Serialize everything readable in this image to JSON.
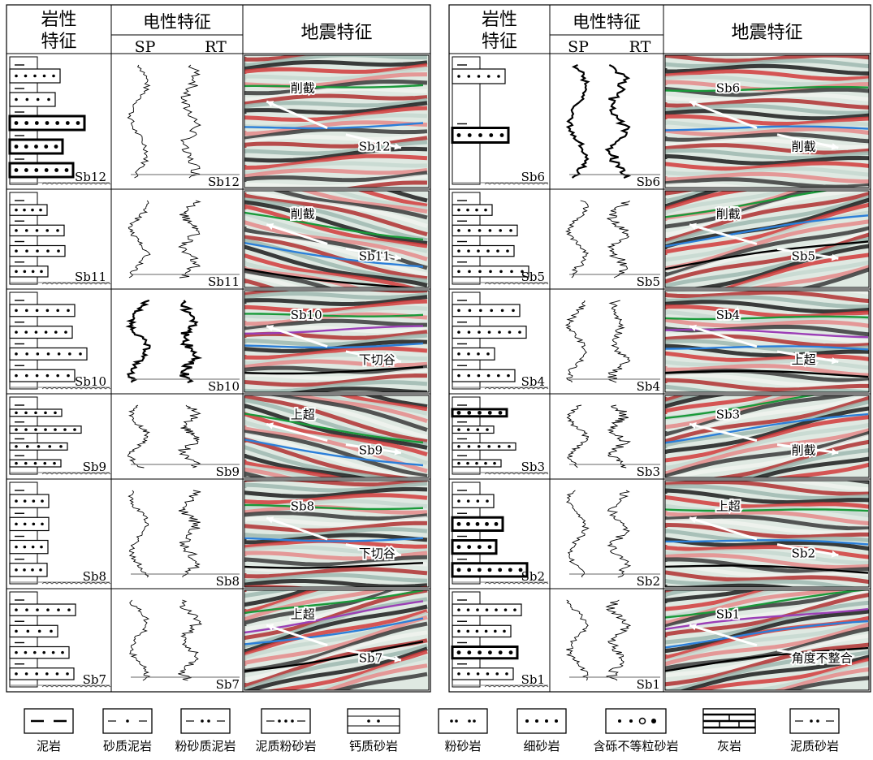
{
  "headers": {
    "lith": [
      "岩性",
      "特征"
    ],
    "elec": "电性特征",
    "sp": "SP",
    "rt": "RT",
    "seis": "地震特征"
  },
  "rows": [
    {
      "lith": "Sb12",
      "curve": "Sb12",
      "seis": [
        {
          "id": "a",
          "text": "削截"
        },
        {
          "id": "b",
          "text": "Sb12"
        }
      ]
    },
    {
      "lith": "Sb11",
      "curve": "Sb11",
      "seis": [
        {
          "id": "a",
          "text": "削截"
        },
        {
          "id": "b",
          "text": "Sb11"
        }
      ]
    },
    {
      "lith": "Sb10",
      "curve": "Sb10",
      "seis": [
        {
          "id": "a",
          "text": "Sb10"
        },
        {
          "id": "b",
          "text": "下切谷"
        }
      ]
    },
    {
      "lith": "Sb9",
      "curve": "Sb9",
      "seis": [
        {
          "id": "a",
          "text": "上超"
        },
        {
          "id": "b",
          "text": "Sb9"
        }
      ]
    },
    {
      "lith": "Sb8",
      "curve": "Sb8",
      "seis": [
        {
          "id": "a",
          "text": "Sb8"
        },
        {
          "id": "b",
          "text": "下切谷"
        }
      ]
    },
    {
      "lith": "Sb7",
      "curve": "Sb7",
      "seis": [
        {
          "id": "a",
          "text": "上超"
        },
        {
          "id": "b",
          "text": "Sb7"
        }
      ]
    },
    {
      "lith": "Sb6",
      "curve": "Sb6",
      "seis": [
        {
          "id": "a",
          "text": "Sb6"
        },
        {
          "id": "b",
          "text": "削截"
        }
      ]
    },
    {
      "lith": "Sb5",
      "curve": "Sb5",
      "seis": [
        {
          "id": "a",
          "text": "削截"
        },
        {
          "id": "b",
          "text": "Sb5"
        }
      ]
    },
    {
      "lith": "Sb4",
      "curve": "Sb4",
      "seis": [
        {
          "id": "a",
          "text": "Sb4"
        },
        {
          "id": "b",
          "text": "上超"
        }
      ]
    },
    {
      "lith": "Sb3",
      "curve": "Sb3",
      "seis": [
        {
          "id": "a",
          "text": "Sb3"
        },
        {
          "id": "b",
          "text": "削截"
        }
      ]
    },
    {
      "lith": "Sb2",
      "curve": "Sb2",
      "seis": [
        {
          "id": "a",
          "text": "上超"
        },
        {
          "id": "b",
          "text": "Sb2"
        }
      ]
    },
    {
      "lith": "Sb1",
      "curve": "Sb1",
      "seis": [
        {
          "id": "a",
          "text": "Sb1"
        },
        {
          "id": "b",
          "text": "角度不整合"
        }
      ]
    }
  ],
  "legend": [
    "泥岩",
    "砂质泥岩",
    "粉砂质泥岩",
    "泥质粉砂岩",
    "钙质砂岩",
    "粉砂岩",
    "细砂岩",
    "含砾不等粒砂岩",
    "灰岩",
    "泥质砂岩"
  ],
  "colors": {
    "green": "#1a9a3a",
    "blue": "#2b7fd9",
    "yellow": "#f1d100",
    "purple": "#9b3fb6",
    "black": "#000000",
    "red": "#d93030",
    "rust": "#d27b2c",
    "line": "#555555"
  }
}
